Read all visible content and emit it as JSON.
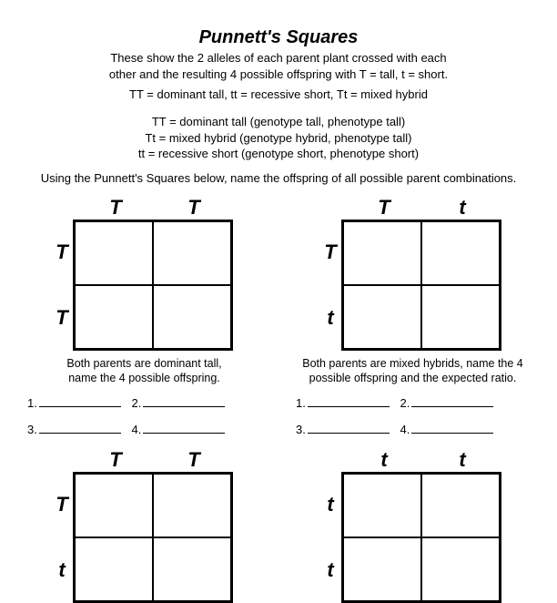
{
  "title": "Punnett's Squares",
  "subtitle_line1": "These show the 2 alleles of each parent plant crossed with each",
  "subtitle_line2": "other and the resulting 4 possible offspring with T = tall, t = short.",
  "legend1": "TT = dominant tall, tt = recessive short, Tt = mixed hybrid",
  "legend2_line1": "TT = dominant tall (genotype tall, phenotype tall)",
  "legend2_line2": "Tt = mixed hybrid (genotype hybrid, phenotype tall)",
  "legend2_line3": "tt = recessive short (genotype short, phenotype short)",
  "instruction": "Using the Punnett's Squares below, name the offspring of all possible parent combinations.",
  "squares": [
    {
      "top": [
        "T",
        "T"
      ],
      "side": [
        "T",
        "T"
      ],
      "caption_line1": "Both parents are dominant tall,",
      "caption_line2": "name the 4 possible offspring."
    },
    {
      "top": [
        "T",
        "t"
      ],
      "side": [
        "T",
        "t"
      ],
      "caption_line1": "Both parents are mixed hybrids, name the 4",
      "caption_line2": "possible offspring and the expected ratio."
    },
    {
      "top": [
        "T",
        "T"
      ],
      "side": [
        "T",
        "t"
      ]
    },
    {
      "top": [
        "t",
        "t"
      ],
      "side": [
        "t",
        "t"
      ]
    }
  ],
  "answer_labels": {
    "n1": "1.",
    "n2": "2.",
    "n3": "3.",
    "n4": "4."
  }
}
